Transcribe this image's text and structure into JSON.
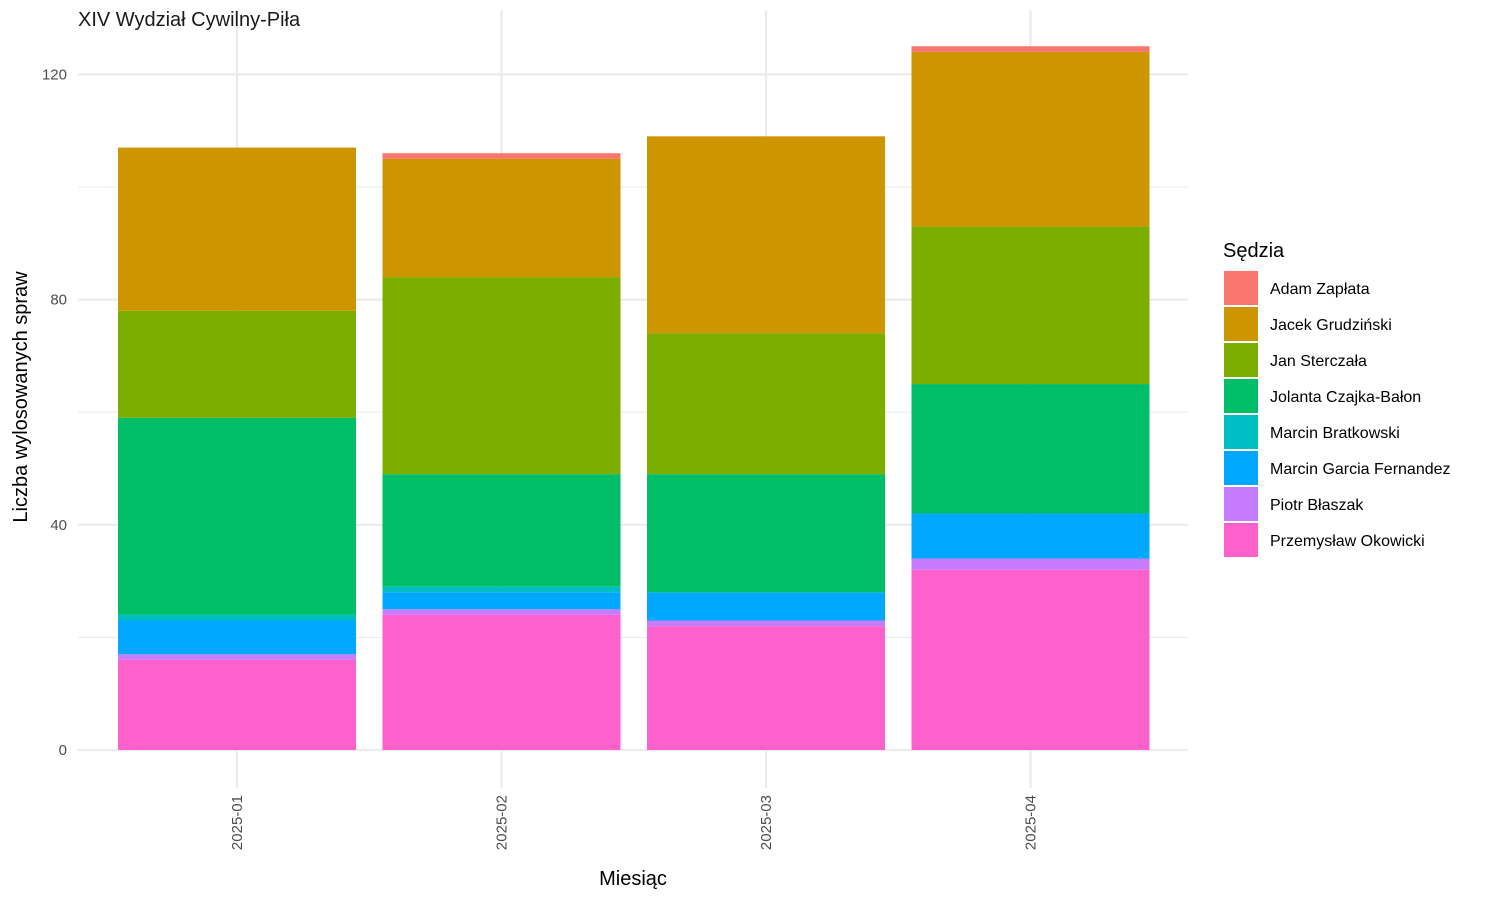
{
  "chart_data": {
    "type": "bar",
    "stacked": true,
    "title": "XIV Wydział Cywilny-Piła",
    "xlabel": "Miesiąc",
    "ylabel": "Liczba wylosowanych spraw",
    "categories": [
      "2025-01",
      "2025-02",
      "2025-03",
      "2025-04"
    ],
    "ylim": [
      0,
      128
    ],
    "y_ticks": [
      0,
      40,
      80,
      120
    ],
    "y_tick_labels": [
      "0",
      "40",
      "80",
      "120"
    ],
    "grid": true,
    "legend_title": "Sędzia",
    "legend_position": "right",
    "series": [
      {
        "name": "Przemysław Okowicki",
        "color": "#FF61CC",
        "values": [
          16,
          24,
          22,
          32
        ]
      },
      {
        "name": "Piotr Błaszak",
        "color": "#C77CFF",
        "values": [
          1,
          1,
          1,
          2
        ]
      },
      {
        "name": "Marcin Garcia Fernandez",
        "color": "#00A9FF",
        "values": [
          6,
          3,
          5,
          8
        ]
      },
      {
        "name": "Marcin Bratkowski",
        "color": "#00BFC4",
        "values": [
          1,
          1,
          0,
          0
        ]
      },
      {
        "name": "Jolanta Czajka-Bałon",
        "color": "#00BE67",
        "values": [
          35,
          20,
          21,
          23
        ]
      },
      {
        "name": "Jan Sterczała",
        "color": "#7CAE00",
        "values": [
          19,
          35,
          25,
          28
        ]
      },
      {
        "name": "Jacek Grudziński",
        "color": "#CD9600",
        "values": [
          29,
          21,
          35,
          31
        ]
      },
      {
        "name": "Adam Zapłata",
        "color": "#F8766D",
        "values": [
          0,
          1,
          0,
          1
        ]
      }
    ],
    "legend_order": [
      "Adam Zapłata",
      "Jacek Grudziński",
      "Jan Sterczała",
      "Jolanta Czajka-Bałon",
      "Marcin Bratkowski",
      "Marcin Garcia Fernandez",
      "Piotr Błaszak",
      "Przemysław Okowicki"
    ]
  }
}
